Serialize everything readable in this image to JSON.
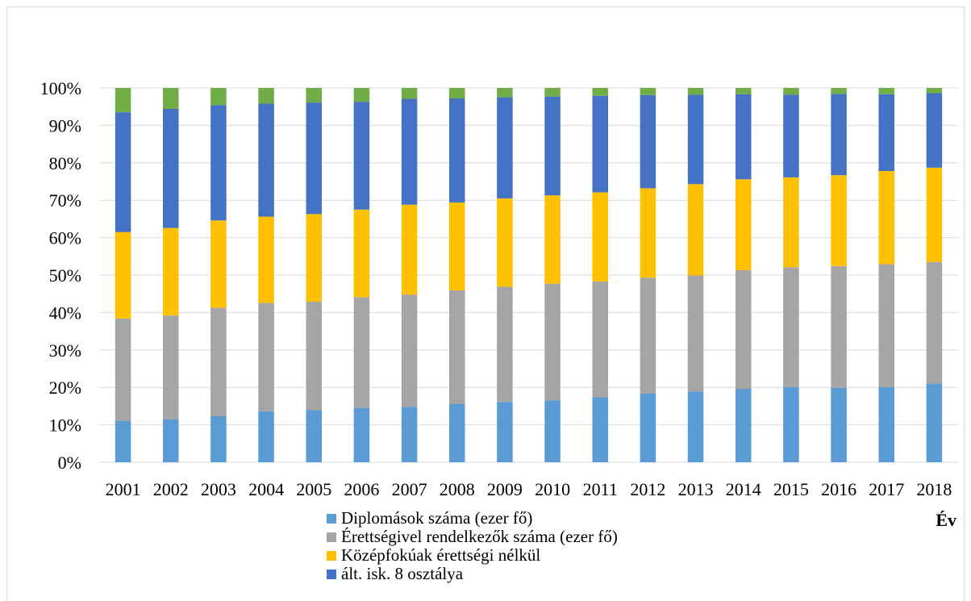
{
  "chart_data": {
    "type": "bar",
    "stacked": true,
    "percent_stacked": true,
    "title": "",
    "xlabel": "Év",
    "ylabel": "",
    "ylim": [
      0,
      100
    ],
    "y_ticks": [
      "0%",
      "10%",
      "20%",
      "30%",
      "40%",
      "50%",
      "60%",
      "70%",
      "80%",
      "90%",
      "100%"
    ],
    "grid": true,
    "legend_position": "bottom",
    "categories": [
      "2001",
      "2002",
      "2003",
      "2004",
      "2005",
      "2006",
      "2007",
      "2008",
      "2009",
      "2010",
      "2011",
      "2012",
      "2013",
      "2014",
      "2015",
      "2016",
      "2017",
      "2018"
    ],
    "series": [
      {
        "name": "Diplomások száma (ezer fő)",
        "color": "#5b9bd5",
        "values": [
          11.0,
          11.5,
          12.3,
          13.6,
          13.9,
          14.5,
          14.8,
          15.6,
          16.1,
          16.5,
          17.4,
          18.4,
          18.9,
          19.6,
          20.1,
          19.9,
          20.1,
          21.0
        ]
      },
      {
        "name": "Érettségivel rendelkezők száma (ezer fő)",
        "color": "#a5a5a5",
        "values": [
          27.4,
          27.7,
          29.0,
          29.0,
          29.0,
          29.6,
          30.0,
          30.3,
          30.8,
          31.2,
          30.9,
          30.9,
          31.0,
          31.7,
          32.0,
          32.5,
          32.8,
          32.5
        ]
      },
      {
        "name": "Középfokúak érettségi nélkül",
        "color": "#ffc000",
        "values": [
          23.1,
          23.4,
          23.3,
          23.0,
          23.4,
          23.4,
          24.0,
          23.5,
          23.6,
          23.6,
          23.8,
          23.9,
          24.4,
          24.3,
          24.0,
          24.3,
          24.9,
          25.2
        ]
      },
      {
        "name": "ált. isk. 8 osztálya",
        "color": "#4472c4",
        "values": [
          32.0,
          31.8,
          30.8,
          30.2,
          29.8,
          28.8,
          28.3,
          27.8,
          27.0,
          26.4,
          25.8,
          24.9,
          23.9,
          22.7,
          22.1,
          21.7,
          20.5,
          19.9
        ]
      },
      {
        "name": "",
        "color": "#70ad47",
        "values": [
          6.5,
          5.6,
          4.6,
          4.2,
          3.9,
          3.7,
          2.9,
          2.8,
          2.5,
          2.3,
          2.1,
          1.9,
          1.8,
          1.7,
          1.8,
          1.6,
          1.7,
          1.4
        ]
      }
    ]
  }
}
